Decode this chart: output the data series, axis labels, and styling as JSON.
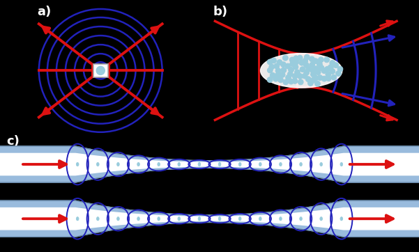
{
  "bg_color": "#000000",
  "label_color": "#ffffff",
  "red_color": "#dd1111",
  "blue_color": "#2222bb",
  "atom_color": "#99ccdd",
  "atom_edge": "#6699aa",
  "fiber_light_blue": "#99bbdd",
  "fiber_dark_blue": "#6688aa",
  "white": "#ffffff",
  "label_a": "a)",
  "label_b": "b)",
  "label_c": "c)",
  "circles_radii": [
    0.13,
    0.26,
    0.4,
    0.54,
    0.68,
    0.82,
    0.95
  ],
  "circle_lw": 1.8,
  "red_lw": 2.8,
  "blue_lw": 2.0
}
